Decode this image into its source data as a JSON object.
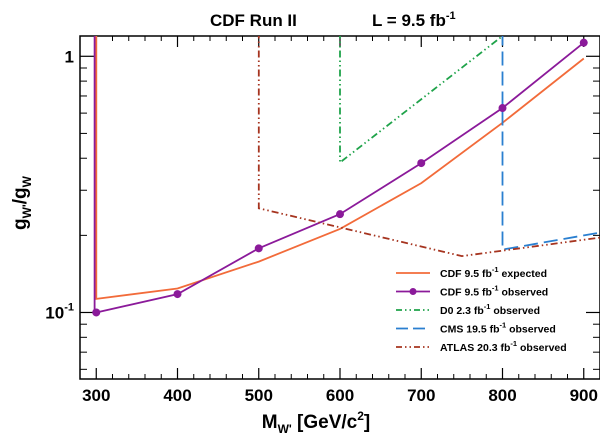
{
  "chart_data": {
    "type": "line",
    "title_left": "CDF Run II",
    "title_right": {
      "base": "L = 9.5 fb",
      "sup": "-1"
    },
    "xlabel": {
      "base": "M",
      "sub": "W'",
      "rest": " [GeV/c",
      "sup": "2",
      "end": "]"
    },
    "ylabel": {
      "g1": "g",
      "sub1": "W'",
      "slash": "/",
      "g2": "g",
      "sub2": "W"
    },
    "xlim": [
      280,
      920
    ],
    "ylim": [
      0.055,
      1.2
    ],
    "y_scale": "log",
    "x_ticks": [
      300,
      400,
      500,
      600,
      700,
      800,
      900
    ],
    "y_ticks": [
      {
        "value": 0.1,
        "base": "10",
        "sup": "-1"
      },
      {
        "value": 1,
        "base": "1",
        "sup": ""
      }
    ],
    "legend_position": "bottom-right",
    "series": [
      {
        "key": "cdf_expected",
        "label": {
          "pre": "CDF 9.5 fb",
          "sup": "-1",
          "post": " expected"
        },
        "color": "#f26b3a",
        "style": "solid",
        "markers": false,
        "points": [
          [
            300,
            1.25
          ],
          [
            300,
            0.113
          ],
          [
            400,
            0.124
          ],
          [
            500,
            0.158
          ],
          [
            600,
            0.212
          ],
          [
            700,
            0.32
          ],
          [
            800,
            0.55
          ],
          [
            900,
            0.98
          ]
        ]
      },
      {
        "key": "cdf_observed",
        "label": {
          "pre": "CDF 9.5 fb",
          "sup": "-1",
          "post": " observed"
        },
        "color": "#8b1a9a",
        "style": "solid",
        "markers": true,
        "points": [
          [
            300,
            0.1
          ],
          [
            400,
            0.118
          ],
          [
            500,
            0.178
          ],
          [
            600,
            0.242
          ],
          [
            700,
            0.383
          ],
          [
            800,
            0.628
          ],
          [
            900,
            1.13
          ]
        ],
        "edge": [
          [
            298,
            1.25
          ],
          [
            298,
            0.1
          ]
        ]
      },
      {
        "key": "d0_observed",
        "label": {
          "pre": "D0 2.3 fb",
          "sup": "-1",
          "post": " observed"
        },
        "color": "#1fa34a",
        "style": "dashdotdot",
        "markers": false,
        "points": [
          [
            600,
            1.25
          ],
          [
            600,
            0.385
          ],
          [
            800,
            1.2
          ]
        ]
      },
      {
        "key": "cms_observed",
        "label": {
          "pre": "CMS 19.5 fb",
          "sup": "-1",
          "post": " observed"
        },
        "color": "#2a7fd0",
        "style": "longdash",
        "markers": false,
        "points": [
          [
            800,
            1.25
          ],
          [
            800,
            0.176
          ],
          [
            920,
            0.205
          ]
        ]
      },
      {
        "key": "atlas_observed",
        "label": {
          "pre": "ATLAS 20.3 fb",
          "sup": "-1",
          "post": " observed"
        },
        "color": "#a6341f",
        "style": "dashdotdot",
        "markers": false,
        "points": [
          [
            500,
            1.25
          ],
          [
            500,
            0.255
          ],
          [
            750,
            0.166
          ],
          [
            920,
            0.196
          ]
        ]
      }
    ]
  }
}
